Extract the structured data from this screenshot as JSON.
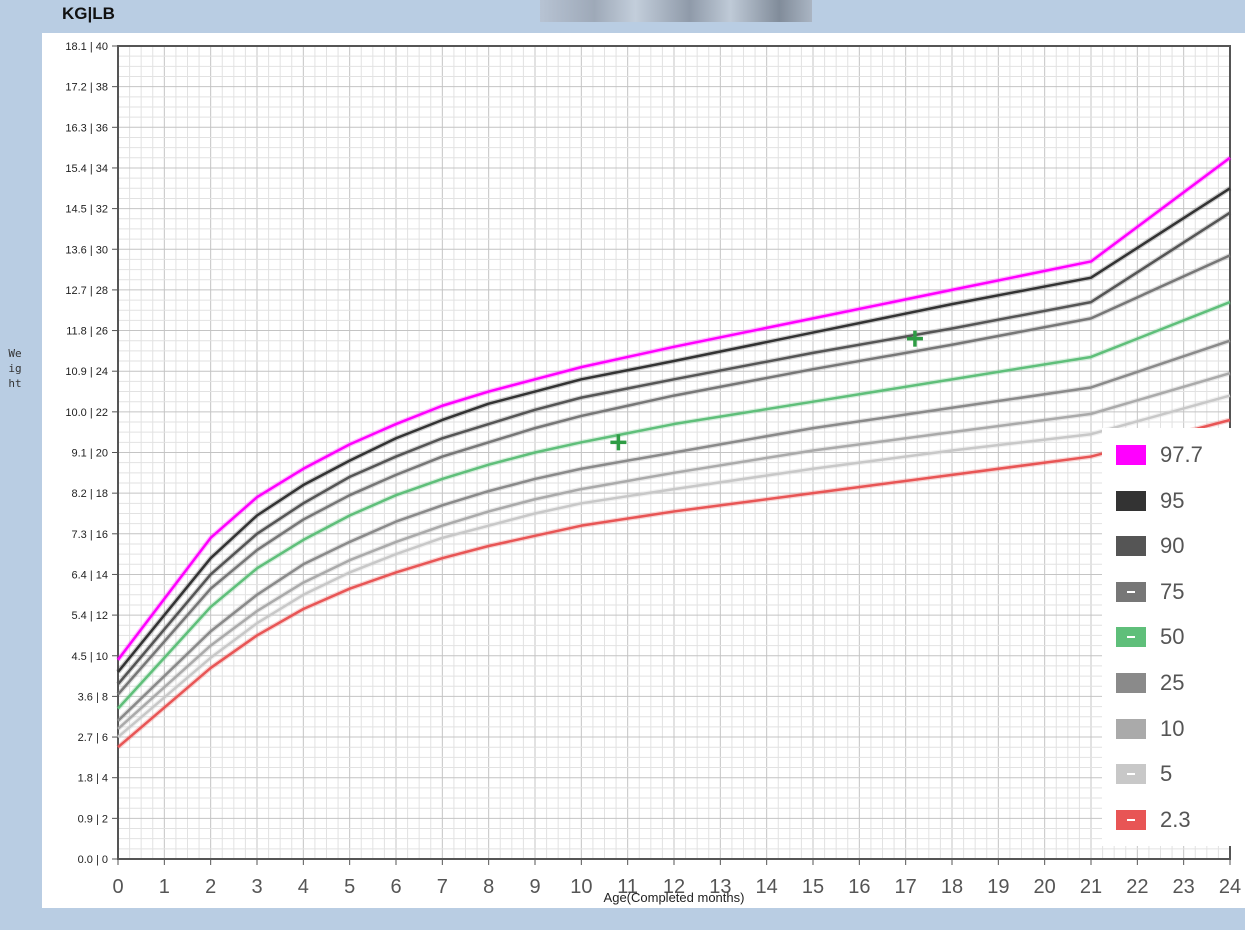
{
  "header": {
    "units_label": "KG|LB"
  },
  "chart_data": {
    "type": "line",
    "xlabel": "Age(Completed months)",
    "ylabel": "Weight",
    "xlim": [
      0,
      24
    ],
    "ylim": [
      0,
      40
    ],
    "y_unit": "lb",
    "grid": true,
    "legend_position": "right",
    "x_ticks": [
      "0",
      "1",
      "2",
      "3",
      "4",
      "5",
      "6",
      "7",
      "8",
      "9",
      "10",
      "11",
      "12",
      "13",
      "14",
      "15",
      "16",
      "17",
      "18",
      "19",
      "20",
      "21",
      "22",
      "23",
      "24"
    ],
    "y_ticks": [
      "0.0 | 0",
      "0.9 | 2",
      "1.8 | 4",
      "2.7 | 6",
      "3.6 | 8",
      "4.5 | 10",
      "5.4 | 12",
      "6.4 | 14",
      "7.3 | 16",
      "8.2 | 18",
      "9.1 | 20",
      "10.0 | 22",
      "10.9 | 24",
      "11.8 | 26",
      "12.7 | 28",
      "13.6 | 30",
      "14.5 | 32",
      "15.4 | 34",
      "16.3 | 36",
      "17.2 | 38",
      "18.1 | 40"
    ],
    "x": [
      0,
      2,
      3,
      4,
      5,
      6,
      7,
      8,
      9,
      10,
      12,
      15,
      18,
      21,
      24
    ],
    "series": [
      {
        "name": "97.7",
        "color": "#ff00ff",
        "values": [
          9.8,
          15.8,
          17.8,
          19.2,
          20.4,
          21.4,
          22.3,
          23.0,
          23.6,
          24.2,
          25.2,
          26.6,
          28.0,
          29.4,
          34.5
        ]
      },
      {
        "name": "95",
        "color": "#333333",
        "values": [
          9.2,
          14.8,
          16.9,
          18.4,
          19.6,
          20.7,
          21.6,
          22.4,
          23.0,
          23.6,
          24.5,
          25.9,
          27.3,
          28.6,
          33.0
        ]
      },
      {
        "name": "90",
        "color": "#555555",
        "values": [
          8.6,
          14.0,
          16.0,
          17.5,
          18.8,
          19.8,
          20.7,
          21.4,
          22.1,
          22.7,
          23.6,
          24.9,
          26.1,
          27.4,
          31.8
        ]
      },
      {
        "name": "75",
        "color": "#777777",
        "values": [
          8.1,
          13.3,
          15.2,
          16.7,
          17.9,
          18.9,
          19.8,
          20.5,
          21.2,
          21.8,
          22.8,
          24.1,
          25.3,
          26.6,
          29.7
        ]
      },
      {
        "name": "50",
        "color": "#5fbf7a",
        "values": [
          7.4,
          12.4,
          14.3,
          15.7,
          16.9,
          17.9,
          18.7,
          19.4,
          20.0,
          20.5,
          21.4,
          22.5,
          23.6,
          24.7,
          27.4
        ]
      },
      {
        "name": "25",
        "color": "#8a8a8a",
        "values": [
          6.8,
          11.2,
          13.0,
          14.5,
          15.6,
          16.6,
          17.4,
          18.1,
          18.7,
          19.2,
          20.0,
          21.2,
          22.2,
          23.2,
          25.5
        ]
      },
      {
        "name": "10",
        "color": "#aaaaaa",
        "values": [
          6.4,
          10.5,
          12.2,
          13.6,
          14.7,
          15.6,
          16.4,
          17.1,
          17.7,
          18.2,
          19.0,
          20.1,
          21.0,
          21.9,
          23.9
        ]
      },
      {
        "name": "5",
        "color": "#c8c8c8",
        "values": [
          6.0,
          9.9,
          11.6,
          13.0,
          14.1,
          15.0,
          15.8,
          16.4,
          17.0,
          17.5,
          18.2,
          19.2,
          20.1,
          20.9,
          22.8
        ]
      },
      {
        "name": "2.3",
        "color": "#e85555",
        "values": [
          5.5,
          9.4,
          11.0,
          12.3,
          13.3,
          14.1,
          14.8,
          15.4,
          15.9,
          16.4,
          17.1,
          18.0,
          18.9,
          19.8,
          21.6
        ]
      }
    ],
    "measurements": [
      {
        "x": 10.8,
        "y": 20.5
      },
      {
        "x": 17.2,
        "y": 25.6
      }
    ],
    "marker_color": "#2e9c44"
  }
}
